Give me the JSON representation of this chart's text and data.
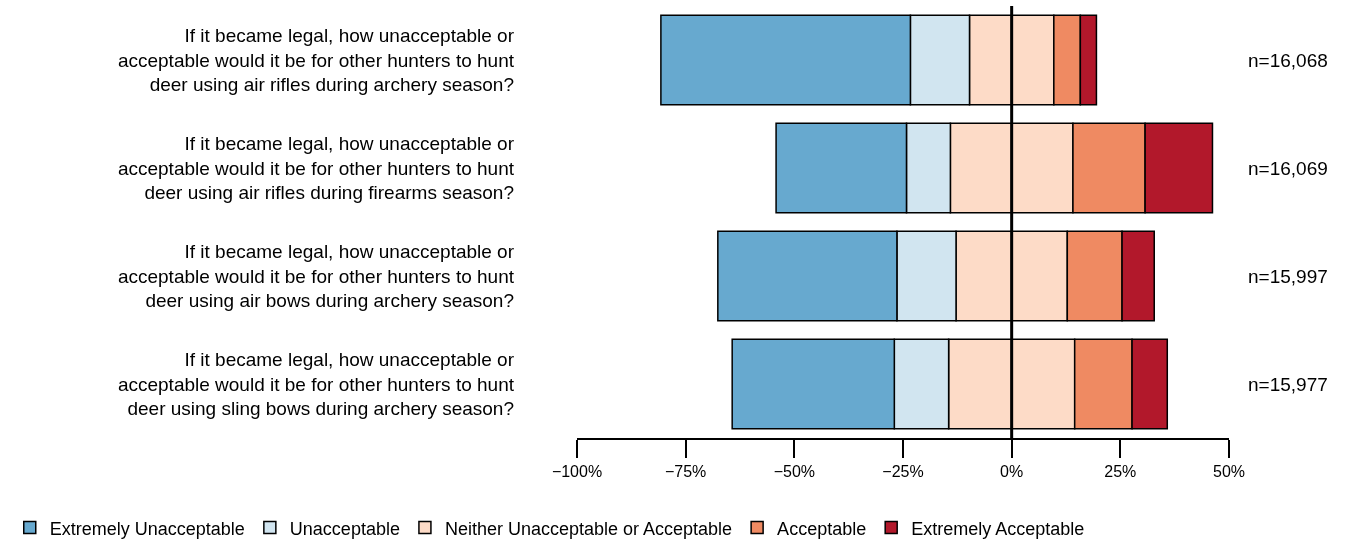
{
  "chart_data": {
    "type": "bar",
    "orientation": "horizontal",
    "stacked": true,
    "categories": [
      "If it became legal, how unacceptable or\nacceptable would it be for other hunters to hunt\ndeer using air rifles during archery season?",
      "If it became legal, how unacceptable or\nacceptable would it be for other hunters to hunt\ndeer using air rifles during firearms season?",
      "If it became legal, how unacceptable or\nacceptable would it be for other hunters to hunt\ndeer using air bows during archery season?",
      "If it became legal, how unacceptable or\nacceptable would it be for other hunters to hunt\ndeer using sling bows during archery season?"
    ],
    "series": [
      {
        "name": "Neither Unacceptable or Acceptable",
        "color": "#fddbc7",
        "values": [
          -9.7,
          -14.1,
          -12.8,
          -14.5
        ]
      },
      {
        "name": "Unacceptable",
        "color": "#d1e5f0",
        "values": [
          -13.6,
          -10.1,
          -13.6,
          -12.5
        ]
      },
      {
        "name": "Extremely Unacceptable",
        "color": "#67a9cf",
        "values": [
          -57.4,
          -30.0,
          -41.2,
          -37.3
        ]
      },
      {
        "color": "#fddbc7",
        "values": [
          9.7,
          14.1,
          12.8,
          14.5
        ]
      },
      {
        "name": "Acceptable",
        "color": "#ef8a62",
        "values": [
          6.1,
          16.6,
          12.6,
          13.2
        ]
      },
      {
        "name": "Extremely Acceptable",
        "color": "#b2182b",
        "values": [
          3.7,
          15.5,
          7.4,
          8.1
        ]
      }
    ],
    "xlim": [
      -100,
      50
    ],
    "xticks": [
      {
        "value": -100,
        "label": "−100%"
      },
      {
        "value": -75,
        "label": "−75%"
      },
      {
        "value": -50,
        "label": "−50%"
      },
      {
        "value": -25,
        "label": "−25%"
      },
      {
        "value": 0,
        "label": "0%"
      },
      {
        "value": 25,
        "label": "25%"
      },
      {
        "value": 50,
        "label": "50%"
      }
    ],
    "ref_lines": [
      {
        "axis": "x",
        "value": 0,
        "color": "#000000"
      }
    ],
    "annotations": [
      "n=16,068",
      "n=16,069",
      "n=15,997",
      "n=15,977"
    ],
    "legend": "bottom"
  }
}
